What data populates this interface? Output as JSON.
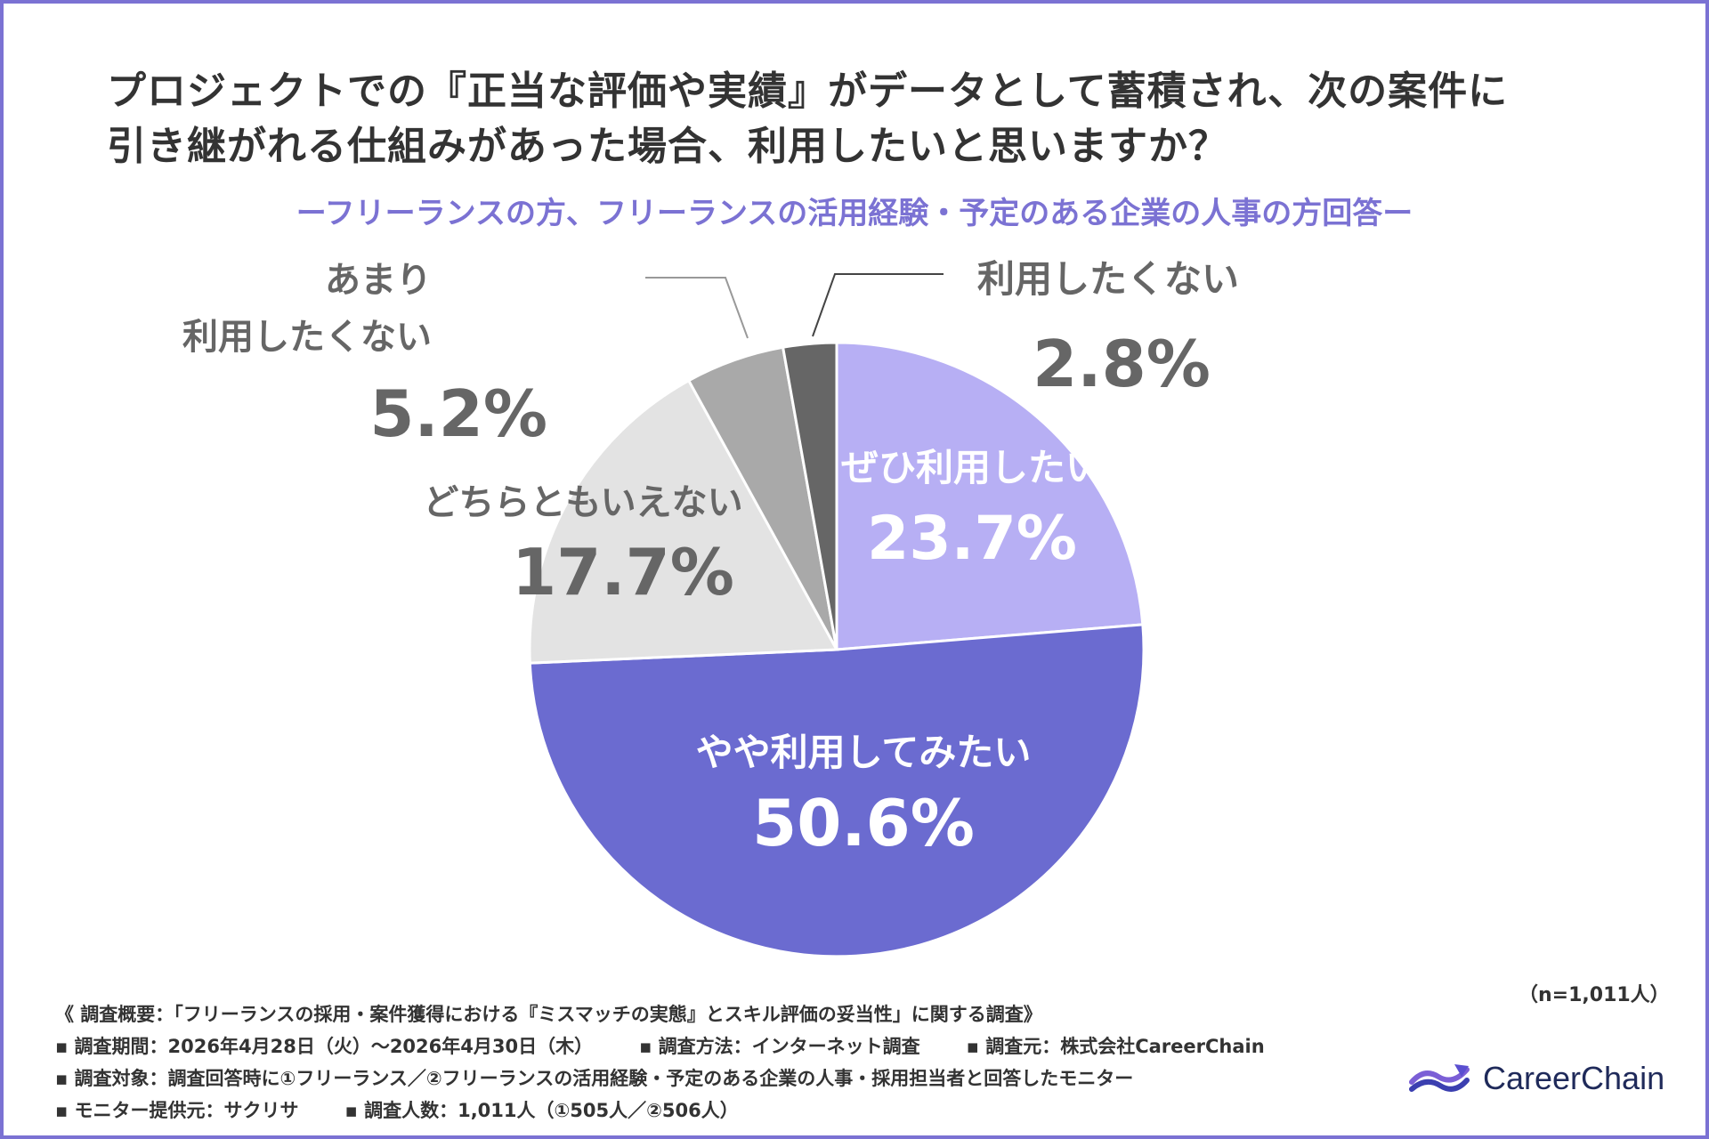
{
  "title_line1": "プロジェクトでの『正当な評価や実績』がデータとして蓄積され、次の案件に",
  "title_line2": "引き継がれる仕組みがあった場合、利用したいと思いますか？",
  "subtitle": "ーフリーランスの方、フリーランスの活用経験・予定のある企業の人事の方回答ー",
  "chart_data": {
    "type": "pie",
    "title": "プロジェクトでの『正当な評価や実績』がデータとして蓄積され、次の案件に引き継がれる仕組みがあった場合、利用したいと思いますか？",
    "slices": [
      {
        "label": "ぜひ利用したい",
        "value": 23.7,
        "display": "23.7%",
        "color": "#b7aff4",
        "label_color": "#ffffff"
      },
      {
        "label": "やや利用してみたい",
        "value": 50.6,
        "display": "50.6%",
        "color": "#6b6bd0",
        "label_color": "#ffffff"
      },
      {
        "label": "どちらともいえない",
        "value": 17.7,
        "display": "17.7%",
        "color": "#e3e3e3",
        "label_color": "#666666"
      },
      {
        "label_lines": [
          "あまり",
          "利用したくない"
        ],
        "value": 5.2,
        "display": "5.2%",
        "color": "#a9a9a9",
        "label_color": "#666666"
      },
      {
        "label": "利用したくない",
        "value": 2.8,
        "display": "2.8%",
        "color": "#666666",
        "label_color": "#666666"
      }
    ]
  },
  "sample_note": "（n=1,011人）",
  "footer": {
    "summary": "《 調査概要：「フリーランスの採用・案件獲得における『ミスマッチの実態』とスキル評価の妥当性」に関する調査》",
    "period": "▪ 調査期間：2026年4月28日（火）〜2026年4月30日（木）",
    "method": "▪ 調査方法：インターネット調査",
    "source": "▪ 調査元：株式会社CareerChain",
    "target": "▪ 調査対象：調査回答時に①フリーランス／②フリーランスの活用経験・予定のある企業の人事・採用担当者と回答したモニター",
    "provider": "▪ モニター提供元：サクリサ",
    "count": "▪ 調査人数：1,011人（①505人／②506人）"
  },
  "logo_text": "CareerChain",
  "colors": {
    "frame": "#7b72d3",
    "accent": "#7b72d3",
    "text": "#333333"
  }
}
